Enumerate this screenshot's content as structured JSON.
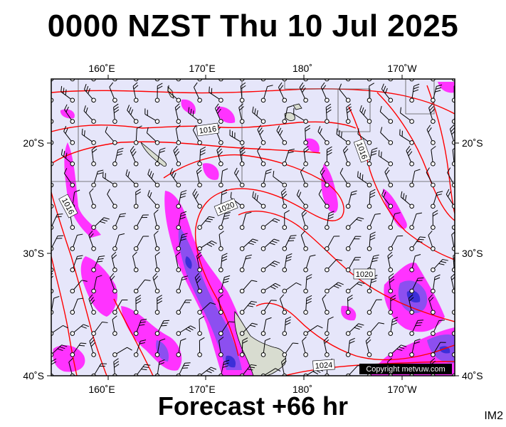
{
  "title": "0000 NZST Thu 10 Jul 2025",
  "forecast": "Forecast +66 hr",
  "product_code": "IM2",
  "copyright": "Copyright metvuw.com",
  "axes": {
    "lon_top": [
      "160˚E",
      "170˚E",
      "180˚",
      "170˚W"
    ],
    "lon_bottom": [
      "160˚E",
      "170˚E",
      "180˚",
      "170˚W"
    ],
    "lat_left": [
      "20˚S",
      "30˚S",
      "40˚S"
    ],
    "lat_right": [
      "20˚S",
      "30˚S",
      "40˚S"
    ]
  },
  "isobar_labels": [
    "1016",
    "1016",
    "1016",
    "1020",
    "1020",
    "1024"
  ],
  "colors": {
    "ocean": "#e6e6fa",
    "isobar": "#ff0000",
    "rain_light": "#ff33ff",
    "rain_mid": "#8c4ff0",
    "rain_heavy": "#3c2fd8",
    "land": "#d8dcd0"
  }
}
